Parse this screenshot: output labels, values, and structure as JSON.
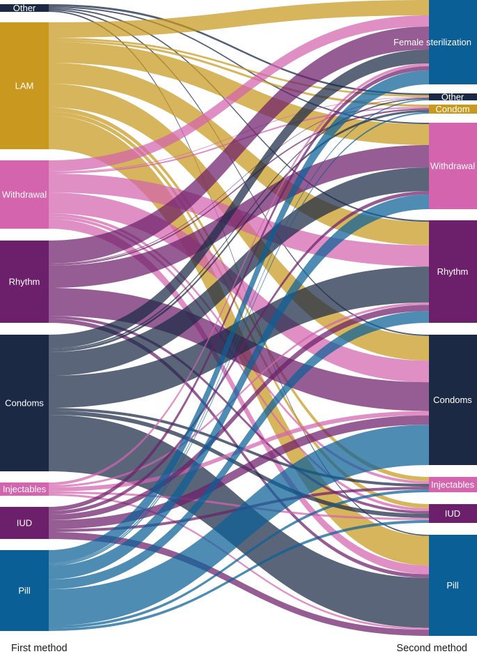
{
  "left_title": "First method",
  "right_title": "Second method",
  "colors": {
    "Other": "#1b2945",
    "LAM": "#c8991e",
    "Withdrawal": "#d364ad",
    "Rhythm": "#6c1f6a",
    "Condoms": "#1b2945",
    "Injectables": "#d364ad",
    "IUD": "#6c1f6a",
    "Pill": "#0b5f97",
    "Female sterilization": "#0b5f97",
    "Condom": "#c8991e"
  },
  "left_nodes": [
    {
      "id": "Other",
      "label": "Other"
    },
    {
      "id": "LAM",
      "label": "LAM"
    },
    {
      "id": "Withdrawal",
      "label": "Withdrawal"
    },
    {
      "id": "Rhythm",
      "label": "Rhythm"
    },
    {
      "id": "Condoms",
      "label": "Condoms"
    },
    {
      "id": "Injectables",
      "label": "Injectables"
    },
    {
      "id": "IUD",
      "label": "IUD"
    },
    {
      "id": "Pill",
      "label": "Pill"
    }
  ],
  "right_nodes": [
    {
      "id": "Female sterilization",
      "label": "Female sterilization"
    },
    {
      "id": "Other",
      "label": "Other"
    },
    {
      "id": "Condom",
      "label": "Condom"
    },
    {
      "id": "Withdrawal",
      "label": "Withdrawal"
    },
    {
      "id": "Rhythm",
      "label": "Rhythm"
    },
    {
      "id": "Condoms",
      "label": "Condoms"
    },
    {
      "id": "Injectables",
      "label": "Injectables"
    },
    {
      "id": "IUD",
      "label": "IUD"
    },
    {
      "id": "Pill",
      "label": "Pill"
    }
  ]
}
